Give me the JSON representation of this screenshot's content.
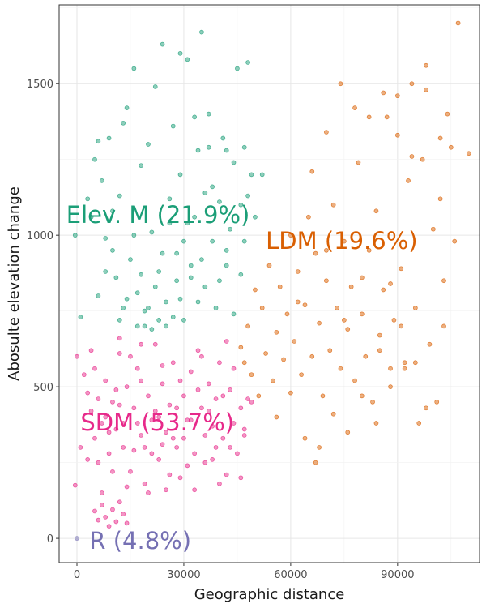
{
  "chart_data": {
    "type": "scatter",
    "xlabel": "Geographic distance",
    "ylabel": "Abosulte elevation change",
    "xlim": [
      -5000,
      113000
    ],
    "ylim": [
      -80,
      1760
    ],
    "x_ticks": [
      0,
      30000,
      60000,
      90000
    ],
    "y_ticks": [
      0,
      500,
      1000,
      1500
    ],
    "grid": true,
    "point_alpha": 0.5,
    "series": [
      {
        "name": "SDM (53.7%)",
        "color": "#e7298a",
        "points": [
          [
            1000,
            300
          ],
          [
            3000,
            480
          ],
          [
            4000,
            420
          ],
          [
            5000,
            330
          ],
          [
            6000,
            250
          ],
          [
            7000,
            380
          ],
          [
            8000,
            520
          ],
          [
            9000,
            280
          ],
          [
            10000,
            450
          ],
          [
            11000,
            360
          ],
          [
            12000,
            610
          ],
          [
            13000,
            300
          ],
          [
            14000,
            500
          ],
          [
            15000,
            220
          ],
          [
            16000,
            430
          ],
          [
            17000,
            560
          ],
          [
            18000,
            340
          ],
          [
            19000,
            180
          ],
          [
            20000,
            470
          ],
          [
            21000,
            390
          ],
          [
            22000,
            640
          ],
          [
            23000,
            260
          ],
          [
            24000,
            510
          ],
          [
            25000,
            350
          ],
          [
            26000,
            440
          ],
          [
            27000,
            580
          ],
          [
            28000,
            300
          ],
          [
            29000,
            200
          ],
          [
            30000,
            470
          ],
          [
            31000,
            390
          ],
          [
            32000,
            550
          ],
          [
            33000,
            280
          ],
          [
            34000,
            620
          ],
          [
            35000,
            430
          ],
          [
            36000,
            340
          ],
          [
            37000,
            510
          ],
          [
            38000,
            260
          ],
          [
            39000,
            460
          ],
          [
            40000,
            580
          ],
          [
            41000,
            330
          ],
          [
            42000,
            210
          ],
          [
            43000,
            490
          ],
          [
            44000,
            380
          ],
          [
            45000,
            280
          ],
          [
            46000,
            430
          ],
          [
            47000,
            360
          ],
          [
            48000,
            460
          ],
          [
            3000,
            260
          ],
          [
            5000,
            560
          ],
          [
            7000,
            150
          ],
          [
            8000,
            400
          ],
          [
            10000,
            220
          ],
          [
            11000,
            490
          ],
          [
            13000,
            380
          ],
          [
            14000,
            170
          ],
          [
            16000,
            290
          ],
          [
            18000,
            520
          ],
          [
            20000,
            150
          ],
          [
            21000,
            280
          ],
          [
            23000,
            400
          ],
          [
            25000,
            160
          ],
          [
            27000,
            330
          ],
          [
            29000,
            520
          ],
          [
            31000,
            240
          ],
          [
            33000,
            160
          ],
          [
            36000,
            250
          ],
          [
            38000,
            370
          ],
          [
            40000,
            180
          ],
          [
            43000,
            300
          ],
          [
            46000,
            200
          ],
          [
            5000,
            90
          ],
          [
            6000,
            60
          ],
          [
            7000,
            110
          ],
          [
            8000,
            70
          ],
          [
            9000,
            40
          ],
          [
            10000,
            95
          ],
          [
            11000,
            55
          ],
          [
            12000,
            120
          ],
          [
            13000,
            80
          ],
          [
            14000,
            50
          ],
          [
            9000,
            350
          ],
          [
            12000,
            440
          ],
          [
            15000,
            600
          ],
          [
            17000,
            380
          ],
          [
            19000,
            300
          ],
          [
            22000,
            420
          ],
          [
            24000,
            310
          ],
          [
            26000,
            210
          ],
          [
            28000,
            430
          ],
          [
            30000,
            330
          ],
          [
            32000,
            390
          ],
          [
            34000,
            490
          ],
          [
            37000,
            420
          ],
          [
            39000,
            300
          ],
          [
            41000,
            470
          ],
          [
            44000,
            560
          ],
          [
            47000,
            340
          ],
          [
            49000,
            450
          ],
          [
            -500,
            175
          ],
          [
            0,
            600
          ],
          [
            2000,
            540
          ],
          [
            4000,
            620
          ],
          [
            6000,
            460
          ],
          [
            12000,
            660
          ],
          [
            18000,
            640
          ],
          [
            24000,
            570
          ],
          [
            35000,
            600
          ],
          [
            42000,
            650
          ]
        ]
      },
      {
        "name": "Elev. M (21.9%)",
        "color": "#1b9e77",
        "points": [
          [
            3000,
            1120
          ],
          [
            4000,
            1060
          ],
          [
            5000,
            1250
          ],
          [
            6000,
            1310
          ],
          [
            7000,
            1180
          ],
          [
            8000,
            990
          ],
          [
            9000,
            1320
          ],
          [
            10000,
            1080
          ],
          [
            11000,
            860
          ],
          [
            12000,
            1130
          ],
          [
            13000,
            760
          ],
          [
            14000,
            1420
          ],
          [
            15000,
            920
          ],
          [
            16000,
            1550
          ],
          [
            17000,
            810
          ],
          [
            18000,
            1230
          ],
          [
            19000,
            700
          ],
          [
            20000,
            1300
          ],
          [
            21000,
            1010
          ],
          [
            22000,
            1490
          ],
          [
            23000,
            880
          ],
          [
            24000,
            1630
          ],
          [
            25000,
            780
          ],
          [
            26000,
            1120
          ],
          [
            27000,
            1360
          ],
          [
            28000,
            940
          ],
          [
            29000,
            1200
          ],
          [
            30000,
            720
          ],
          [
            31000,
            1580
          ],
          [
            32000,
            860
          ],
          [
            33000,
            1060
          ],
          [
            34000,
            1280
          ],
          [
            35000,
            920
          ],
          [
            36000,
            1140
          ],
          [
            37000,
            1400
          ],
          [
            38000,
            980
          ],
          [
            39000,
            760
          ],
          [
            40000,
            1110
          ],
          [
            41000,
            1320
          ],
          [
            42000,
            900
          ],
          [
            43000,
            1020
          ],
          [
            44000,
            1240
          ],
          [
            45000,
            1550
          ],
          [
            46000,
            1100
          ],
          [
            47000,
            980
          ],
          [
            48000,
            1570
          ],
          [
            49000,
            1200
          ],
          [
            50000,
            1060
          ],
          [
            -500,
            1000
          ],
          [
            1000,
            730
          ],
          [
            6000,
            800
          ],
          [
            8000,
            880
          ],
          [
            10000,
            950
          ],
          [
            12000,
            720
          ],
          [
            14000,
            790
          ],
          [
            16000,
            1000
          ],
          [
            18000,
            870
          ],
          [
            20000,
            760
          ],
          [
            22000,
            830
          ],
          [
            24000,
            940
          ],
          [
            26000,
            1040
          ],
          [
            28000,
            850
          ],
          [
            30000,
            980
          ],
          [
            32000,
            900
          ],
          [
            34000,
            780
          ],
          [
            36000,
            830
          ],
          [
            38000,
            1160
          ],
          [
            40000,
            850
          ],
          [
            42000,
            950
          ],
          [
            44000,
            740
          ],
          [
            46000,
            870
          ],
          [
            48000,
            1130
          ],
          [
            17000,
            700
          ],
          [
            19000,
            750
          ],
          [
            21000,
            690
          ],
          [
            23000,
            720
          ],
          [
            25000,
            700
          ],
          [
            27000,
            730
          ],
          [
            29000,
            790
          ],
          [
            31000,
            1040
          ],
          [
            33000,
            1390
          ],
          [
            35000,
            1670
          ],
          [
            37000,
            1290
          ],
          [
            29000,
            1600
          ],
          [
            13000,
            1370
          ],
          [
            42000,
            1280
          ],
          [
            47000,
            1290
          ],
          [
            52000,
            1200
          ]
        ]
      },
      {
        "name": "LDM (19.6%)",
        "color": "#d95f02",
        "points": [
          [
            46000,
            630
          ],
          [
            47000,
            580
          ],
          [
            48000,
            700
          ],
          [
            49000,
            540
          ],
          [
            50000,
            820
          ],
          [
            51000,
            470
          ],
          [
            52000,
            760
          ],
          [
            53000,
            610
          ],
          [
            54000,
            900
          ],
          [
            55000,
            520
          ],
          [
            56000,
            680
          ],
          [
            57000,
            830
          ],
          [
            58000,
            590
          ],
          [
            59000,
            740
          ],
          [
            60000,
            1000
          ],
          [
            61000,
            650
          ],
          [
            62000,
            880
          ],
          [
            63000,
            540
          ],
          [
            64000,
            770
          ],
          [
            65000,
            1060
          ],
          [
            66000,
            600
          ],
          [
            67000,
            940
          ],
          [
            68000,
            710
          ],
          [
            69000,
            470
          ],
          [
            70000,
            850
          ],
          [
            71000,
            620
          ],
          [
            72000,
            1100
          ],
          [
            73000,
            760
          ],
          [
            74000,
            560
          ],
          [
            75000,
            980
          ],
          [
            76000,
            690
          ],
          [
            77000,
            830
          ],
          [
            78000,
            520
          ],
          [
            79000,
            1240
          ],
          [
            80000,
            740
          ],
          [
            81000,
            600
          ],
          [
            82000,
            950
          ],
          [
            83000,
            450
          ],
          [
            84000,
            1080
          ],
          [
            85000,
            670
          ],
          [
            86000,
            820
          ],
          [
            87000,
            1390
          ],
          [
            88000,
            560
          ],
          [
            89000,
            720
          ],
          [
            90000,
            1460
          ],
          [
            91000,
            890
          ],
          [
            92000,
            580
          ],
          [
            93000,
            1180
          ],
          [
            94000,
            1500
          ],
          [
            95000,
            760
          ],
          [
            96000,
            380
          ],
          [
            97000,
            1250
          ],
          [
            98000,
            1480
          ],
          [
            99000,
            640
          ],
          [
            100000,
            1020
          ],
          [
            101000,
            450
          ],
          [
            102000,
            1120
          ],
          [
            103000,
            700
          ],
          [
            104000,
            1400
          ],
          [
            105000,
            1290
          ],
          [
            106000,
            980
          ],
          [
            107000,
            1700
          ],
          [
            110000,
            1270
          ],
          [
            56000,
            400
          ],
          [
            60000,
            480
          ],
          [
            64000,
            330
          ],
          [
            68000,
            300
          ],
          [
            72000,
            410
          ],
          [
            76000,
            350
          ],
          [
            80000,
            470
          ],
          [
            84000,
            380
          ],
          [
            88000,
            500
          ],
          [
            92000,
            560
          ],
          [
            66000,
            1210
          ],
          [
            70000,
            1340
          ],
          [
            74000,
            1500
          ],
          [
            78000,
            1420
          ],
          [
            82000,
            1390
          ],
          [
            86000,
            1470
          ],
          [
            90000,
            1330
          ],
          [
            94000,
            1260
          ],
          [
            98000,
            1560
          ],
          [
            102000,
            1320
          ],
          [
            67000,
            250
          ],
          [
            62000,
            780
          ],
          [
            70000,
            950
          ],
          [
            75000,
            720
          ],
          [
            80000,
            860
          ],
          [
            85000,
            620
          ],
          [
            88000,
            840
          ],
          [
            91000,
            700
          ],
          [
            95000,
            580
          ],
          [
            98000,
            430
          ],
          [
            103000,
            850
          ]
        ]
      },
      {
        "name": "R (4.8%)",
        "color": "#7570b3",
        "points": [
          [
            0,
            0
          ]
        ]
      }
    ],
    "annotations": [
      {
        "text": "Elev. M (21.9%)",
        "x": -3000,
        "y": 1070,
        "color": "#1b9e77"
      },
      {
        "text": "LDM (19.6%)",
        "x": 53000,
        "y": 985,
        "color": "#d95f02"
      },
      {
        "text": "SDM (53.7%)",
        "x": 1000,
        "y": 385,
        "color": "#e7298a"
      },
      {
        "text": "R (4.8%)",
        "x": 3500,
        "y": -5,
        "color": "#7570b3"
      }
    ]
  }
}
